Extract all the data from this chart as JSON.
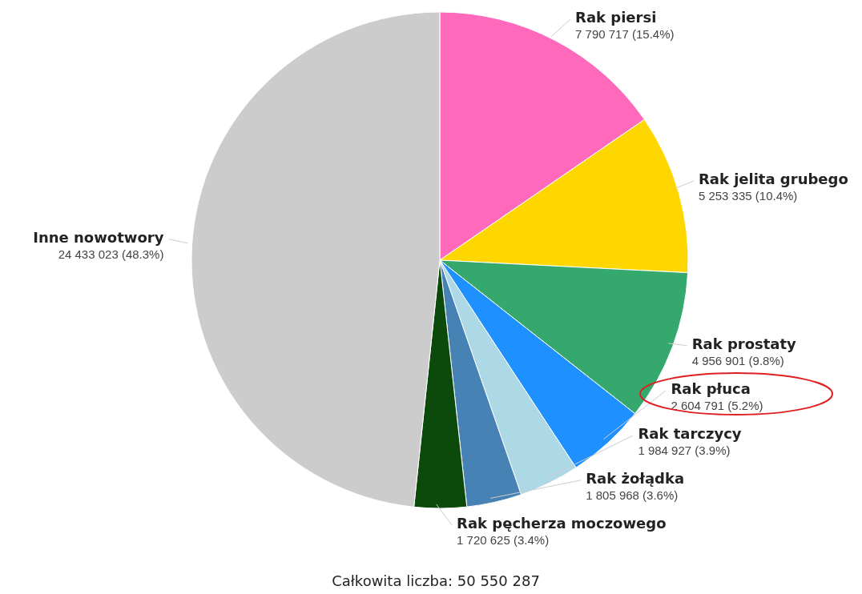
{
  "chart_data": {
    "type": "pie",
    "categories": [
      "Rak piersi",
      "Rak jelita grubego",
      "Rak prostaty",
      "Rak płuca",
      "Rak tarczycy",
      "Rak żołądka",
      "Rak pęcherza moczowego",
      "Inne nowotwory"
    ],
    "values": [
      7790717,
      5253335,
      4956901,
      2604791,
      1984927,
      1805968,
      1720625,
      24433023
    ],
    "colors": [
      "#ff69bc",
      "#ffd700",
      "#35a86e",
      "#1e90ff",
      "#add8e6",
      "#4682b4",
      "#0b4a0b",
      "#cccccc"
    ],
    "value_labels": [
      "7 790 717 (15.4%)",
      "5 253 335 (10.4%)",
      "4 956 901 (9.8%)",
      "2 604 791 (5.2%)",
      "1 984 927 (3.9%)",
      "1 805 968 (3.6%)",
      "1 720 625 (3.4%)",
      "24 433 023 (48.3%)"
    ],
    "annotations": [
      "Całkowita liczba: 50 550 287"
    ],
    "legend": false
  }
}
